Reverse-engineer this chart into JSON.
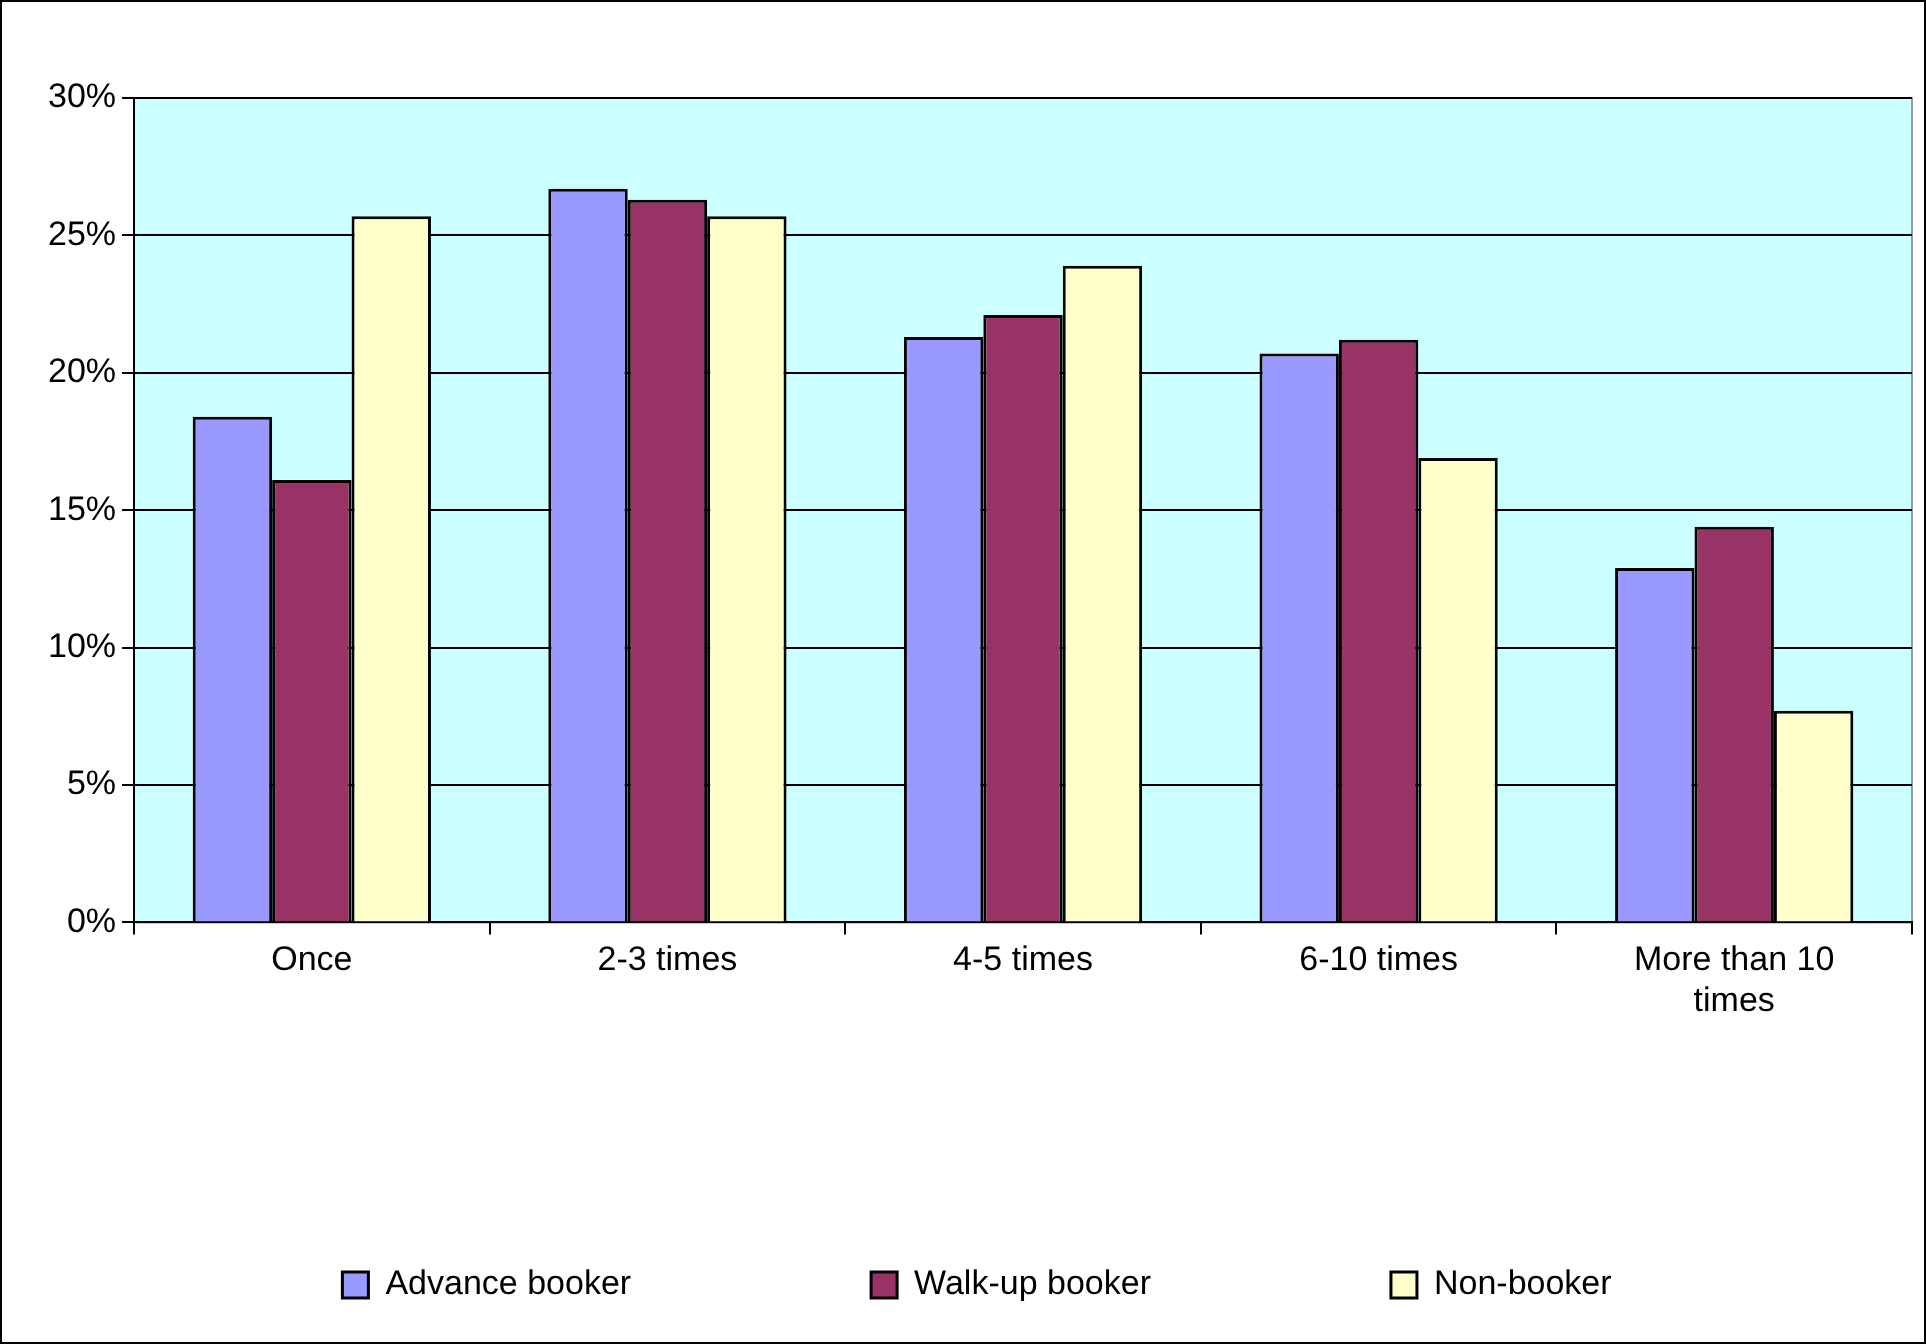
{
  "chart_data": {
    "type": "bar",
    "categories": [
      "Once",
      "2-3 times",
      "4-5 times",
      "6-10 times",
      "More than 10 times"
    ],
    "series": [
      {
        "name": "Advance booker",
        "color": "#9999ff",
        "values": [
          18.4,
          26.7,
          21.3,
          20.7,
          12.9
        ]
      },
      {
        "name": "Walk-up booker",
        "color": "#993366",
        "values": [
          16.1,
          26.3,
          22.1,
          21.2,
          14.4
        ]
      },
      {
        "name": "Non-booker",
        "color": "#ffffcc",
        "values": [
          25.7,
          25.7,
          23.9,
          16.9,
          7.7
        ]
      }
    ],
    "ylim": [
      0,
      30
    ],
    "yticks": [
      {
        "value": 0,
        "label": "0%"
      },
      {
        "value": 5,
        "label": "5%"
      },
      {
        "value": 10,
        "label": "10%"
      },
      {
        "value": 15,
        "label": "15%"
      },
      {
        "value": 20,
        "label": "20%"
      },
      {
        "value": 25,
        "label": "25%"
      },
      {
        "value": 30,
        "label": "30%"
      }
    ],
    "grid": "y",
    "legend": "bottom"
  }
}
